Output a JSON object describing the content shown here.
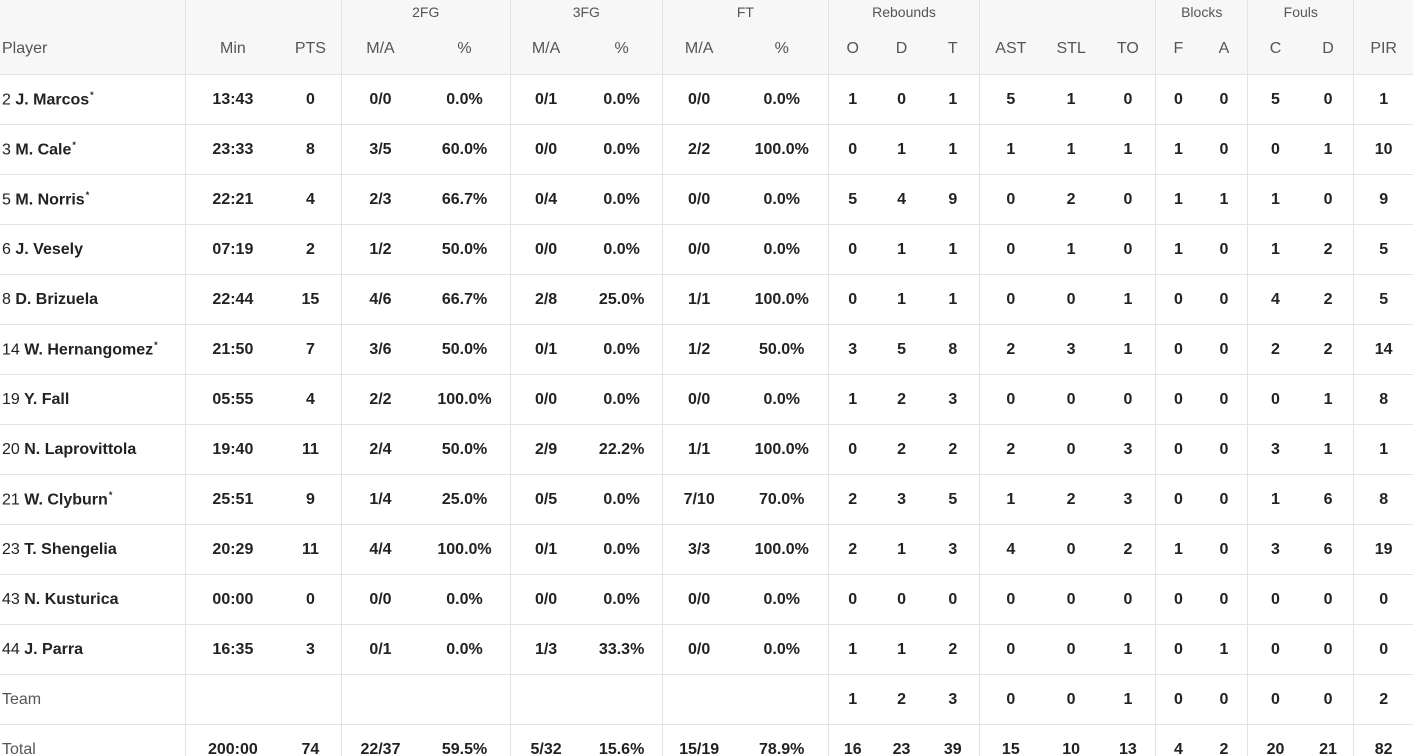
{
  "header": {
    "groups": {
      "fg2": "2FG",
      "fg3": "3FG",
      "ft": "FT",
      "rebounds": "Rebounds",
      "blocks": "Blocks",
      "fouls": "Fouls"
    },
    "columns": {
      "player": "Player",
      "min": "Min",
      "pts": "PTS",
      "fg2_ma": "M/A",
      "fg2_pct": "%",
      "fg3_ma": "M/A",
      "fg3_pct": "%",
      "ft_ma": "M/A",
      "ft_pct": "%",
      "reb_o": "O",
      "reb_d": "D",
      "reb_t": "T",
      "ast": "AST",
      "stl": "STL",
      "to": "TO",
      "blk_f": "F",
      "blk_a": "A",
      "foul_c": "C",
      "foul_d": "D",
      "pir": "PIR"
    }
  },
  "starter_mark": "*",
  "players": [
    {
      "num": "2",
      "name": "J. Marcos",
      "starter": true,
      "min": "13:43",
      "pts": "0",
      "fg2_ma": "0/0",
      "fg2_pct": "0.0%",
      "fg3_ma": "0/1",
      "fg3_pct": "0.0%",
      "ft_ma": "0/0",
      "ft_pct": "0.0%",
      "reb_o": "1",
      "reb_d": "0",
      "reb_t": "1",
      "ast": "5",
      "stl": "1",
      "to": "0",
      "blk_f": "0",
      "blk_a": "0",
      "foul_c": "5",
      "foul_d": "0",
      "pir": "1"
    },
    {
      "num": "3",
      "name": "M. Cale",
      "starter": true,
      "min": "23:33",
      "pts": "8",
      "fg2_ma": "3/5",
      "fg2_pct": "60.0%",
      "fg3_ma": "0/0",
      "fg3_pct": "0.0%",
      "ft_ma": "2/2",
      "ft_pct": "100.0%",
      "reb_o": "0",
      "reb_d": "1",
      "reb_t": "1",
      "ast": "1",
      "stl": "1",
      "to": "1",
      "blk_f": "1",
      "blk_a": "0",
      "foul_c": "0",
      "foul_d": "1",
      "pir": "10"
    },
    {
      "num": "5",
      "name": "M. Norris",
      "starter": true,
      "min": "22:21",
      "pts": "4",
      "fg2_ma": "2/3",
      "fg2_pct": "66.7%",
      "fg3_ma": "0/4",
      "fg3_pct": "0.0%",
      "ft_ma": "0/0",
      "ft_pct": "0.0%",
      "reb_o": "5",
      "reb_d": "4",
      "reb_t": "9",
      "ast": "0",
      "stl": "2",
      "to": "0",
      "blk_f": "1",
      "blk_a": "1",
      "foul_c": "1",
      "foul_d": "0",
      "pir": "9"
    },
    {
      "num": "6",
      "name": "J. Vesely",
      "starter": false,
      "min": "07:19",
      "pts": "2",
      "fg2_ma": "1/2",
      "fg2_pct": "50.0%",
      "fg3_ma": "0/0",
      "fg3_pct": "0.0%",
      "ft_ma": "0/0",
      "ft_pct": "0.0%",
      "reb_o": "0",
      "reb_d": "1",
      "reb_t": "1",
      "ast": "0",
      "stl": "1",
      "to": "0",
      "blk_f": "1",
      "blk_a": "0",
      "foul_c": "1",
      "foul_d": "2",
      "pir": "5"
    },
    {
      "num": "8",
      "name": "D. Brizuela",
      "starter": false,
      "min": "22:44",
      "pts": "15",
      "fg2_ma": "4/6",
      "fg2_pct": "66.7%",
      "fg3_ma": "2/8",
      "fg3_pct": "25.0%",
      "ft_ma": "1/1",
      "ft_pct": "100.0%",
      "reb_o": "0",
      "reb_d": "1",
      "reb_t": "1",
      "ast": "0",
      "stl": "0",
      "to": "1",
      "blk_f": "0",
      "blk_a": "0",
      "foul_c": "4",
      "foul_d": "2",
      "pir": "5"
    },
    {
      "num": "14",
      "name": "W. Hernangomez",
      "starter": true,
      "min": "21:50",
      "pts": "7",
      "fg2_ma": "3/6",
      "fg2_pct": "50.0%",
      "fg3_ma": "0/1",
      "fg3_pct": "0.0%",
      "ft_ma": "1/2",
      "ft_pct": "50.0%",
      "reb_o": "3",
      "reb_d": "5",
      "reb_t": "8",
      "ast": "2",
      "stl": "3",
      "to": "1",
      "blk_f": "0",
      "blk_a": "0",
      "foul_c": "2",
      "foul_d": "2",
      "pir": "14"
    },
    {
      "num": "19",
      "name": "Y. Fall",
      "starter": false,
      "min": "05:55",
      "pts": "4",
      "fg2_ma": "2/2",
      "fg2_pct": "100.0%",
      "fg3_ma": "0/0",
      "fg3_pct": "0.0%",
      "ft_ma": "0/0",
      "ft_pct": "0.0%",
      "reb_o": "1",
      "reb_d": "2",
      "reb_t": "3",
      "ast": "0",
      "stl": "0",
      "to": "0",
      "blk_f": "0",
      "blk_a": "0",
      "foul_c": "0",
      "foul_d": "1",
      "pir": "8"
    },
    {
      "num": "20",
      "name": "N. Laprovittola",
      "starter": false,
      "min": "19:40",
      "pts": "11",
      "fg2_ma": "2/4",
      "fg2_pct": "50.0%",
      "fg3_ma": "2/9",
      "fg3_pct": "22.2%",
      "ft_ma": "1/1",
      "ft_pct": "100.0%",
      "reb_o": "0",
      "reb_d": "2",
      "reb_t": "2",
      "ast": "2",
      "stl": "0",
      "to": "3",
      "blk_f": "0",
      "blk_a": "0",
      "foul_c": "3",
      "foul_d": "1",
      "pir": "1"
    },
    {
      "num": "21",
      "name": "W. Clyburn",
      "starter": true,
      "min": "25:51",
      "pts": "9",
      "fg2_ma": "1/4",
      "fg2_pct": "25.0%",
      "fg3_ma": "0/5",
      "fg3_pct": "0.0%",
      "ft_ma": "7/10",
      "ft_pct": "70.0%",
      "reb_o": "2",
      "reb_d": "3",
      "reb_t": "5",
      "ast": "1",
      "stl": "2",
      "to": "3",
      "blk_f": "0",
      "blk_a": "0",
      "foul_c": "1",
      "foul_d": "6",
      "pir": "8"
    },
    {
      "num": "23",
      "name": "T. Shengelia",
      "starter": false,
      "min": "20:29",
      "pts": "11",
      "fg2_ma": "4/4",
      "fg2_pct": "100.0%",
      "fg3_ma": "0/1",
      "fg3_pct": "0.0%",
      "ft_ma": "3/3",
      "ft_pct": "100.0%",
      "reb_o": "2",
      "reb_d": "1",
      "reb_t": "3",
      "ast": "4",
      "stl": "0",
      "to": "2",
      "blk_f": "1",
      "blk_a": "0",
      "foul_c": "3",
      "foul_d": "6",
      "pir": "19"
    },
    {
      "num": "43",
      "name": "N. Kusturica",
      "starter": false,
      "min": "00:00",
      "pts": "0",
      "fg2_ma": "0/0",
      "fg2_pct": "0.0%",
      "fg3_ma": "0/0",
      "fg3_pct": "0.0%",
      "ft_ma": "0/0",
      "ft_pct": "0.0%",
      "reb_o": "0",
      "reb_d": "0",
      "reb_t": "0",
      "ast": "0",
      "stl": "0",
      "to": "0",
      "blk_f": "0",
      "blk_a": "0",
      "foul_c": "0",
      "foul_d": "0",
      "pir": "0"
    },
    {
      "num": "44",
      "name": "J. Parra",
      "starter": false,
      "min": "16:35",
      "pts": "3",
      "fg2_ma": "0/1",
      "fg2_pct": "0.0%",
      "fg3_ma": "1/3",
      "fg3_pct": "33.3%",
      "ft_ma": "0/0",
      "ft_pct": "0.0%",
      "reb_o": "1",
      "reb_d": "1",
      "reb_t": "2",
      "ast": "0",
      "stl": "0",
      "to": "1",
      "blk_f": "0",
      "blk_a": "1",
      "foul_c": "0",
      "foul_d": "0",
      "pir": "0"
    }
  ],
  "team": {
    "label": "Team",
    "min": "",
    "pts": "",
    "fg2_ma": "",
    "fg2_pct": "",
    "fg3_ma": "",
    "fg3_pct": "",
    "ft_ma": "",
    "ft_pct": "",
    "reb_o": "1",
    "reb_d": "2",
    "reb_t": "3",
    "ast": "0",
    "stl": "0",
    "to": "1",
    "blk_f": "0",
    "blk_a": "0",
    "foul_c": "0",
    "foul_d": "0",
    "pir": "2"
  },
  "total": {
    "label": "Total",
    "min": "200:00",
    "pts": "74",
    "fg2_ma": "22/37",
    "fg2_pct": "59.5%",
    "fg3_ma": "5/32",
    "fg3_pct": "15.6%",
    "ft_ma": "15/19",
    "ft_pct": "78.9%",
    "reb_o": "16",
    "reb_d": "23",
    "reb_t": "39",
    "ast": "15",
    "stl": "10",
    "to": "13",
    "blk_f": "4",
    "blk_a": "2",
    "foul_c": "20",
    "foul_d": "21",
    "pir": "82"
  }
}
